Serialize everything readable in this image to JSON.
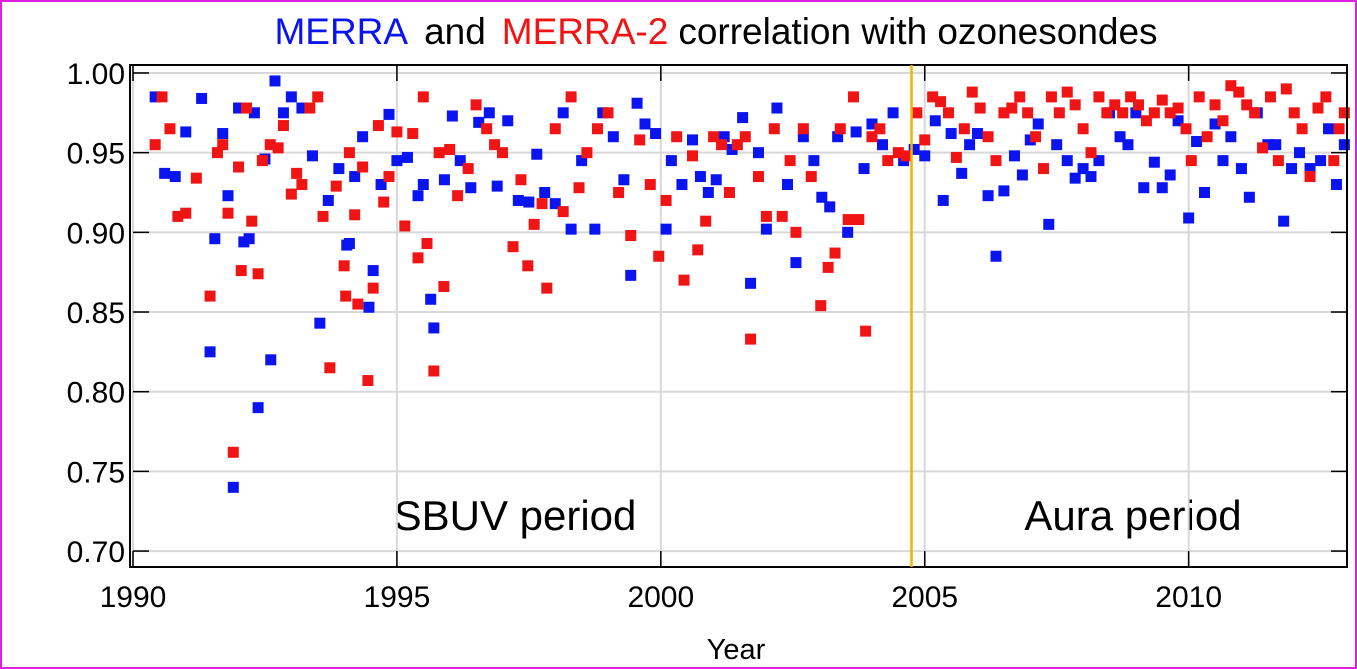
{
  "chart_data": {
    "type": "scatter",
    "title_connector": "and",
    "title_rest": "correlation with ozonesondes",
    "xlabel": "Year",
    "xlim": [
      1990,
      2013
    ],
    "xticks": [
      1990,
      1995,
      2000,
      2005,
      2010
    ],
    "ylim": [
      0.69,
      1.005
    ],
    "yticks": [
      {
        "value": 0.7,
        "label": "0.70"
      },
      {
        "value": 0.75,
        "label": "0.75"
      },
      {
        "value": 0.8,
        "label": "0.80"
      },
      {
        "value": 0.85,
        "label": "0.85"
      },
      {
        "value": 0.9,
        "label": "0.90"
      },
      {
        "value": 0.95,
        "label": "0.95"
      },
      {
        "value": 1.0,
        "label": "1.00"
      }
    ],
    "grid": true,
    "vline": {
      "x": 2004.75,
      "color": "#f0b400"
    },
    "annotations": [
      {
        "text": "SBUV period"
      },
      {
        "text": "Aura period"
      }
    ],
    "series": [
      {
        "name": "MERRA",
        "color": "#0a14f0",
        "x": [
          1990.42,
          1990.6,
          1990.8,
          1991.0,
          1991.3,
          1991.46,
          1991.55,
          1991.7,
          1991.8,
          1991.9,
          1992.0,
          1992.1,
          1992.2,
          1992.3,
          1992.37,
          1992.5,
          1992.61,
          1992.69,
          1992.85,
          1993.0,
          1993.2,
          1993.4,
          1993.54,
          1993.7,
          1993.9,
          1994.05,
          1994.1,
          1994.2,
          1994.35,
          1994.47,
          1994.55,
          1994.7,
          1994.85,
          1995.0,
          1995.2,
          1995.4,
          1995.5,
          1995.64,
          1995.7,
          1995.9,
          1996.05,
          1996.2,
          1996.4,
          1996.55,
          1996.75,
          1996.9,
          1997.1,
          1997.3,
          1997.5,
          1997.65,
          1997.8,
          1998.0,
          1998.15,
          1998.3,
          1998.5,
          1998.75,
          1998.9,
          1999.1,
          1999.3,
          1999.43,
          1999.55,
          1999.7,
          1999.9,
          2000.1,
          2000.2,
          2000.4,
          2000.6,
          2000.75,
          2000.9,
          2001.05,
          2001.2,
          2001.35,
          2001.55,
          2001.7,
          2001.85,
          2002.0,
          2002.2,
          2002.4,
          2002.56,
          2002.7,
          2002.9,
          2003.05,
          2003.2,
          2003.35,
          2003.54,
          2003.7,
          2003.85,
          2004.0,
          2004.2,
          2004.4,
          2004.6,
          2004.8,
          2005.0,
          2005.2,
          2005.35,
          2005.5,
          2005.7,
          2005.85,
          2006.0,
          2006.2,
          2006.35,
          2006.5,
          2006.7,
          2006.85,
          2007.0,
          2007.15,
          2007.35,
          2007.5,
          2007.7,
          2007.85,
          2008.0,
          2008.15,
          2008.3,
          2008.5,
          2008.7,
          2008.85,
          2009.0,
          2009.15,
          2009.35,
          2009.5,
          2009.65,
          2009.8,
          2010.0,
          2010.15,
          2010.3,
          2010.5,
          2010.65,
          2010.8,
          2011.0,
          2011.15,
          2011.3,
          2011.5,
          2011.65,
          2011.8,
          2011.95,
          2012.1,
          2012.3,
          2012.5,
          2012.65,
          2012.8,
          2012.95
        ],
        "values": [
          0.985,
          0.937,
          0.935,
          0.963,
          0.984,
          0.825,
          0.896,
          0.962,
          0.923,
          0.74,
          0.978,
          0.894,
          0.896,
          0.975,
          0.79,
          0.946,
          0.82,
          0.995,
          0.975,
          0.985,
          0.978,
          0.948,
          0.843,
          0.92,
          0.94,
          0.892,
          0.893,
          0.935,
          0.96,
          0.853,
          0.876,
          0.93,
          0.974,
          0.945,
          0.947,
          0.923,
          0.93,
          0.858,
          0.84,
          0.933,
          0.973,
          0.945,
          0.928,
          0.969,
          0.975,
          0.929,
          0.97,
          0.92,
          0.919,
          0.949,
          0.925,
          0.918,
          0.975,
          0.902,
          0.945,
          0.902,
          0.975,
          0.96,
          0.933,
          0.873,
          0.981,
          0.968,
          0.962,
          0.902,
          0.945,
          0.93,
          0.958,
          0.935,
          0.925,
          0.933,
          0.96,
          0.952,
          0.972,
          0.868,
          0.95,
          0.902,
          0.978,
          0.93,
          0.881,
          0.96,
          0.945,
          0.922,
          0.916,
          0.96,
          0.9,
          0.963,
          0.94,
          0.968,
          0.955,
          0.975,
          0.945,
          0.952,
          0.948,
          0.97,
          0.92,
          0.962,
          0.937,
          0.955,
          0.962,
          0.923,
          0.885,
          0.926,
          0.948,
          0.936,
          0.958,
          0.968,
          0.905,
          0.955,
          0.945,
          0.934,
          0.94,
          0.935,
          0.945,
          0.975,
          0.96,
          0.955,
          0.975,
          0.928,
          0.944,
          0.928,
          0.936,
          0.97,
          0.909,
          0.957,
          0.925,
          0.968,
          0.945,
          0.96,
          0.94,
          0.922,
          0.975,
          0.955,
          0.955,
          0.907,
          0.94,
          0.95,
          0.94,
          0.945,
          0.965,
          0.93,
          0.955
        ]
      },
      {
        "name": "MERRA-2",
        "color": "#f01414",
        "x": [
          1990.42,
          1990.55,
          1990.7,
          1990.85,
          1991.0,
          1991.2,
          1991.46,
          1991.6,
          1991.7,
          1991.8,
          1991.9,
          1992.0,
          1992.05,
          1992.15,
          1992.25,
          1992.37,
          1992.45,
          1992.6,
          1992.75,
          1992.85,
          1993.0,
          1993.1,
          1993.2,
          1993.35,
          1993.5,
          1993.6,
          1993.73,
          1993.85,
          1994.0,
          1994.03,
          1994.1,
          1994.2,
          1994.26,
          1994.35,
          1994.45,
          1994.55,
          1994.65,
          1994.75,
          1994.85,
          1995.0,
          1995.15,
          1995.3,
          1995.4,
          1995.5,
          1995.57,
          1995.7,
          1995.8,
          1995.89,
          1996.0,
          1996.15,
          1996.35,
          1996.5,
          1996.7,
          1996.85,
          1997.0,
          1997.2,
          1997.35,
          1997.48,
          1997.6,
          1997.75,
          1997.84,
          1998.0,
          1998.15,
          1998.3,
          1998.45,
          1998.6,
          1998.8,
          1999.0,
          1999.2,
          1999.43,
          1999.6,
          1999.8,
          1999.96,
          2000.1,
          2000.3,
          2000.44,
          2000.6,
          2000.7,
          2000.85,
          2001.0,
          2001.15,
          2001.3,
          2001.45,
          2001.6,
          2001.7,
          2001.85,
          2002.0,
          2002.15,
          2002.3,
          2002.45,
          2002.56,
          2002.7,
          2002.85,
          2003.03,
          2003.17,
          2003.3,
          2003.4,
          2003.55,
          2003.65,
          2003.75,
          2003.88,
          2004.0,
          2004.15,
          2004.3,
          2004.5,
          2004.65,
          2004.85,
          2005.0,
          2005.15,
          2005.3,
          2005.45,
          2005.6,
          2005.75,
          2005.9,
          2006.05,
          2006.2,
          2006.35,
          2006.5,
          2006.65,
          2006.8,
          2006.95,
          2007.1,
          2007.25,
          2007.4,
          2007.55,
          2007.7,
          2007.85,
          2008.0,
          2008.15,
          2008.3,
          2008.45,
          2008.6,
          2008.75,
          2008.9,
          2009.05,
          2009.2,
          2009.35,
          2009.5,
          2009.65,
          2009.8,
          2009.95,
          2010.05,
          2010.2,
          2010.35,
          2010.5,
          2010.65,
          2010.8,
          2010.95,
          2011.1,
          2011.25,
          2011.4,
          2011.55,
          2011.7,
          2011.85,
          2012.0,
          2012.15,
          2012.3,
          2012.45,
          2012.6,
          2012.75,
          2012.85,
          2012.95
        ],
        "values": [
          0.955,
          0.985,
          0.965,
          0.91,
          0.912,
          0.934,
          0.86,
          0.95,
          0.955,
          0.912,
          0.762,
          0.941,
          0.876,
          0.978,
          0.907,
          0.874,
          0.945,
          0.955,
          0.953,
          0.967,
          0.924,
          0.937,
          0.93,
          0.978,
          0.985,
          0.91,
          0.815,
          0.929,
          0.879,
          0.86,
          0.95,
          0.911,
          0.855,
          0.941,
          0.807,
          0.865,
          0.967,
          0.919,
          0.935,
          0.963,
          0.904,
          0.962,
          0.884,
          0.985,
          0.893,
          0.813,
          0.95,
          0.866,
          0.952,
          0.923,
          0.94,
          0.98,
          0.965,
          0.955,
          0.95,
          0.891,
          0.933,
          0.879,
          0.905,
          0.918,
          0.865,
          0.965,
          0.913,
          0.985,
          0.928,
          0.95,
          0.965,
          0.975,
          0.925,
          0.898,
          0.958,
          0.93,
          0.885,
          0.92,
          0.96,
          0.87,
          0.948,
          0.889,
          0.907,
          0.96,
          0.955,
          0.925,
          0.955,
          0.96,
          0.833,
          0.935,
          0.91,
          0.965,
          0.91,
          0.945,
          0.9,
          0.965,
          0.935,
          0.854,
          0.878,
          0.887,
          0.965,
          0.908,
          0.985,
          0.908,
          0.838,
          0.96,
          0.965,
          0.945,
          0.95,
          0.948,
          0.975,
          0.958,
          0.985,
          0.982,
          0.975,
          0.947,
          0.965,
          0.988,
          0.978,
          0.96,
          0.945,
          0.975,
          0.978,
          0.985,
          0.975,
          0.96,
          0.94,
          0.985,
          0.975,
          0.988,
          0.98,
          0.965,
          0.95,
          0.985,
          0.975,
          0.98,
          0.975,
          0.985,
          0.98,
          0.97,
          0.975,
          0.983,
          0.975,
          0.978,
          0.965,
          0.945,
          0.985,
          0.96,
          0.98,
          0.97,
          0.992,
          0.988,
          0.98,
          0.975,
          0.953,
          0.985,
          0.945,
          0.99,
          0.975,
          0.965,
          0.935,
          0.978,
          0.985,
          0.945,
          0.965,
          0.975
        ]
      }
    ]
  }
}
